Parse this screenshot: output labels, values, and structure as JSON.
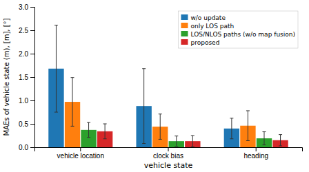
{
  "chart_data": {
    "type": "bar",
    "xlabel": "vehicle state",
    "ylabel": "MAEs of vehicle state (m), [m], [°]",
    "categories": [
      "vehicle location",
      "clock bias",
      "heading"
    ],
    "series": [
      {
        "name": "w/o update",
        "values": [
          1.68,
          0.88,
          0.4
        ],
        "error_upper": [
          0.93,
          0.8,
          0.22
        ],
        "error_lower": [
          0.93,
          0.8,
          0.22
        ]
      },
      {
        "name": "only LOS path",
        "values": [
          0.97,
          0.44,
          0.46
        ],
        "error_upper": [
          0.52,
          0.27,
          0.32
        ],
        "error_lower": [
          0.52,
          0.27,
          0.32
        ]
      },
      {
        "name": "LOS/NLOS paths (w/o map fusion)",
        "values": [
          0.37,
          0.13,
          0.19
        ],
        "error_upper": [
          0.16,
          0.11,
          0.14
        ],
        "error_lower": [
          0.16,
          0.11,
          0.14
        ]
      },
      {
        "name": "proposed",
        "values": [
          0.34,
          0.13,
          0.15
        ],
        "error_upper": [
          0.16,
          0.12,
          0.12
        ],
        "error_lower": [
          0.16,
          0.12,
          0.12
        ]
      }
    ],
    "ylim": [
      0,
      3
    ],
    "yticks": [
      {
        "value": 0,
        "label": "0.0"
      },
      0.5,
      {
        "value": 1.0,
        "label": "1.0"
      },
      1.5,
      {
        "value": 2.0,
        "label": "2.0"
      },
      2.5,
      {
        "value": 3.0,
        "label": "3.0"
      }
    ],
    "grid": false,
    "legend": "upper right"
  }
}
